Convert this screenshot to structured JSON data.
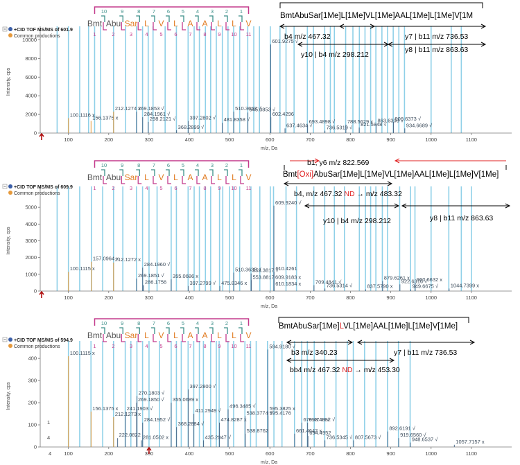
{
  "colors": {
    "blue_line": "#8fd0e8",
    "peak": "#4a6a8a",
    "orange": "#e69a3c",
    "teal": "#3a8e88",
    "magenta": "#c33a8c",
    "red": "#e02020",
    "residue_grey": "#555555",
    "residue_orange": "#e07a1f"
  },
  "common_label": "Common productions",
  "sequence_residues": [
    "Bmt",
    "Abu",
    "Sar",
    "L",
    "V",
    "L",
    "A",
    "A",
    "L",
    "L",
    "V"
  ],
  "residue_colors": [
    "grey",
    "grey",
    "orange",
    "orange",
    "orange",
    "orange",
    "orange",
    "orange",
    "orange",
    "orange",
    "orange"
  ],
  "bottom_numbers": [
    "1",
    "2",
    "3",
    "4",
    "5",
    "6",
    "7",
    "8",
    "9",
    "10",
    "11"
  ],
  "top_numbers": [
    "10",
    "9",
    "8",
    "7",
    "6",
    "5",
    "4",
    "3",
    "2",
    "1"
  ],
  "chart_data": [
    {
      "type": "bar",
      "title": "+CID TOF MS/MS of 601.9",
      "xlabel": "m/z, Da",
      "ylabel": "Intensity, cps",
      "xlim": [
        30,
        1200
      ],
      "ylim": [
        0,
        11000
      ],
      "x_ticks": [
        100,
        200,
        300,
        400,
        500,
        600,
        700,
        800,
        900,
        1000,
        1100
      ],
      "y_ticks": [
        0,
        2000,
        4000,
        6000,
        8000,
        10000
      ],
      "annotation_sequence": "BmtAbuSar[1Me]L[1Me]VL[1Me]AAL[1Me]L[1Me]V[1M",
      "fragment_labels": [
        "b4 m/z 467.32",
        "y7 | b11 m/z 736.53",
        "y10 | b4 m/z 298.212",
        "y8 | b11 m/z 863.63"
      ],
      "peaks": [
        {
          "x": 100.1116,
          "y": 1600,
          "label": "100.1116 x",
          "common": true
        },
        {
          "x": 156.1375,
          "y": 1300,
          "label": "156.1375 x",
          "common": true
        },
        {
          "x": 212.1274,
          "y": 2300,
          "label": "212.1274 x",
          "common": true
        },
        {
          "x": 269.1853,
          "y": 2300,
          "label": "269.1853 √",
          "common": false
        },
        {
          "x": 284.1961,
          "y": 1700,
          "label": "284.1961 √",
          "common": false
        },
        {
          "x": 298.2121,
          "y": 1200,
          "label": "298.2121 √",
          "common": false
        },
        {
          "x": 368.2899,
          "y": 300,
          "label": "368.2899 √",
          "common": false
        },
        {
          "x": 397.2802,
          "y": 1300,
          "label": "397.2802 √",
          "common": false
        },
        {
          "x": 481.8358,
          "y": 1100,
          "label": "481.8358 √",
          "common": false
        },
        {
          "x": 510.3643,
          "y": 2300,
          "label": "510.3643 √",
          "common": false
        },
        {
          "x": 545.3853,
          "y": 2200,
          "label": "545.3853 √",
          "common": false
        },
        {
          "x": 601.9275,
          "y": 9500,
          "label": "601.9275 √",
          "common": false
        },
        {
          "x": 602.4296,
          "y": 1700,
          "label": "602.4296",
          "common": false
        },
        {
          "x": 637.4634,
          "y": 500,
          "label": "637.4634 √",
          "common": false
        },
        {
          "x": 693.4898,
          "y": 900,
          "label": "693.4898 √",
          "common": false
        },
        {
          "x": 736.5319,
          "y": 250,
          "label": "736.5319 √",
          "common": false
        },
        {
          "x": 788.5629,
          "y": 900,
          "label": "788.5629 x",
          "common": false
        },
        {
          "x": 821.5848,
          "y": 600,
          "label": "821.5848 √",
          "common": false
        },
        {
          "x": 863.6308,
          "y": 1000,
          "label": "863.6308 √",
          "common": false
        },
        {
          "x": 906.6373,
          "y": 1200,
          "label": "906.6373 √",
          "common": false
        },
        {
          "x": 934.6689,
          "y": 500,
          "label": "934.6689 √",
          "common": false
        }
      ]
    },
    {
      "type": "bar",
      "title": "+CID TOF MS/MS of 609.9",
      "xlabel": "m/z, Da",
      "ylabel": "Intensity, cps",
      "xlim": [
        30,
        1200
      ],
      "ylim": [
        0,
        6000
      ],
      "x_ticks": [
        100,
        200,
        300,
        400,
        500,
        600,
        700,
        800,
        900,
        1000,
        1100
      ],
      "y_ticks": [
        0,
        1000,
        2000,
        3000,
        4000,
        5000
      ],
      "annotation_sequence_parts": [
        "Bmt",
        "[Oxi]",
        "AbuSar[1Me]L[1Me]VL[1Me]AAL[1Me]L[1Me]V[1Me]"
      ],
      "fragment_labels": [
        "b1, y6 m/z 822.569",
        "b4, m/z 467.32",
        "ND",
        "→ m/z 483.32",
        "y10 | b4 m/z 298.212",
        "y8 | b11 m/z 863.63"
      ],
      "peaks": [
        {
          "x": 100.1115,
          "y": 1150,
          "label": "100.1115 x",
          "common": true
        },
        {
          "x": 157.0964,
          "y": 1750,
          "label": "157.0964 x",
          "common": true
        },
        {
          "x": 212.1272,
          "y": 1700,
          "label": "212.1272 x",
          "common": true
        },
        {
          "x": 269.1851,
          "y": 750,
          "label": "269.1851 √",
          "common": false
        },
        {
          "x": 284.196,
          "y": 1400,
          "label": "284.1960 √",
          "common": false
        },
        {
          "x": 286.1756,
          "y": 350,
          "label": "286.1756",
          "common": false
        },
        {
          "x": 355.0686,
          "y": 700,
          "label": "355.0686 x",
          "common": false
        },
        {
          "x": 397.2799,
          "y": 300,
          "label": "397.2799 √",
          "common": false
        },
        {
          "x": 475.8346,
          "y": 300,
          "label": "475.8346 x",
          "common": false
        },
        {
          "x": 510.3635,
          "y": 1100,
          "label": "510.3635 √",
          "common": false
        },
        {
          "x": 553.3817,
          "y": 1050,
          "label": "553.3817 √",
          "common": false
        },
        {
          "x": 553.8817,
          "y": 650,
          "label": "553.8817",
          "common": false
        },
        {
          "x": 609.924,
          "y": 5100,
          "label": "609.9240 √",
          "common": false
        },
        {
          "x": 610.4261,
          "y": 1150,
          "label": "610.4261",
          "common": false
        },
        {
          "x": 609.9183,
          "y": 650,
          "label": "609.9183 x",
          "common": false
        },
        {
          "x": 610.1834,
          "y": 250,
          "label": "610.1834 x",
          "common": false
        },
        {
          "x": 709.4841,
          "y": 350,
          "label": "709.4841 √",
          "common": false
        },
        {
          "x": 736.5314,
          "y": 150,
          "label": "736.5314 √",
          "common": false
        },
        {
          "x": 837.579,
          "y": 100,
          "label": "837.5790 x",
          "common": false
        },
        {
          "x": 879.6261,
          "y": 600,
          "label": "879.6261 x",
          "common": false
        },
        {
          "x": 922.6316,
          "y": 400,
          "label": "922.6316 √",
          "common": false
        },
        {
          "x": 949.6675,
          "y": 100,
          "label": "949.6675 √",
          "common": false
        },
        {
          "x": 960.6632,
          "y": 500,
          "label": "960.6632 x",
          "common": false
        },
        {
          "x": 1044.7399,
          "y": 150,
          "label": "1044.7399 x",
          "common": false
        }
      ]
    },
    {
      "type": "bar",
      "title": "+CID TOF MS/MS of 594.9",
      "xlabel": "m/z, Da",
      "ylabel": "Intensity, cps",
      "xlim": [
        30,
        1200
      ],
      "ylim": [
        0,
        460
      ],
      "x_ticks": [
        100,
        200,
        300,
        400,
        500,
        600,
        700,
        800,
        900,
        1000,
        1100
      ],
      "y_ticks": [
        0,
        100,
        200,
        300,
        400
      ],
      "annotation_sequence_parts": [
        "BmtAbuSar[1Me]",
        "L",
        "VL[1Me]AAL[1Me]L[1Me]V[1Me]"
      ],
      "fragment_labels": [
        "b3 m/z 340.23",
        "y7 | b11 m/z 736.53",
        "bb4 m/z 467.32",
        "ND",
        "→ m/z 453.30"
      ],
      "stray_labels": [
        "1",
        "4",
        "4"
      ],
      "peaks": [
        {
          "x": 100.1115,
          "y": 410,
          "label": "100.1115 x",
          "common": true
        },
        {
          "x": 156.1375,
          "y": 160,
          "label": "156.1375 x",
          "common": true
        },
        {
          "x": 212.1273,
          "y": 135,
          "label": "212.1273 x",
          "common": true
        },
        {
          "x": 222.0822,
          "y": 40,
          "label": "222.0822",
          "common": false
        },
        {
          "x": 241.1903,
          "y": 160,
          "label": "241.1903 √",
          "common": false
        },
        {
          "x": 270.1803,
          "y": 230,
          "label": "270.1803 √",
          "common": false
        },
        {
          "x": 269.185,
          "y": 200,
          "label": "269.1850 √",
          "common": false
        },
        {
          "x": 281.0502,
          "y": 30,
          "label": "281.0502 x",
          "common": false
        },
        {
          "x": 284.1952,
          "y": 110,
          "label": "284.1952 √",
          "common": false
        },
        {
          "x": 368.2884,
          "y": 90,
          "label": "368.2884 √",
          "common": false
        },
        {
          "x": 355.0689,
          "y": 200,
          "label": "355.0689 x",
          "common": false
        },
        {
          "x": 397.28,
          "y": 260,
          "label": "397.2800 √",
          "common": false
        },
        {
          "x": 411.2949,
          "y": 150,
          "label": "411.2949 √",
          "common": false
        },
        {
          "x": 435.2947,
          "y": 30,
          "label": "435.2947 √",
          "common": false
        },
        {
          "x": 474.8287,
          "y": 110,
          "label": "474.8287 x",
          "common": false
        },
        {
          "x": 496.3485,
          "y": 170,
          "label": "496.3485 √",
          "common": false
        },
        {
          "x": 538.3774,
          "y": 140,
          "label": "538.3774 √",
          "common": false
        },
        {
          "x": 538.8762,
          "y": 60,
          "label": "538.8762",
          "common": false
        },
        {
          "x": 594.918,
          "y": 440,
          "label": "594.9180 √",
          "common": false
        },
        {
          "x": 595.3825,
          "y": 160,
          "label": "595.3825 x",
          "common": false
        },
        {
          "x": 595.4176,
          "y": 140,
          "label": "595.4176",
          "common": false
        },
        {
          "x": 661.4642,
          "y": 60,
          "label": "661.4642 x",
          "common": false
        },
        {
          "x": 679.474,
          "y": 110,
          "label": "679.4740 √",
          "common": false
        },
        {
          "x": 693.4882,
          "y": 110,
          "label": "693.4882 √",
          "common": false
        },
        {
          "x": 694.4952,
          "y": 50,
          "label": "694.4952",
          "common": false
        },
        {
          "x": 736.5345,
          "y": 30,
          "label": "736.5345 √",
          "common": false
        },
        {
          "x": 807.5673,
          "y": 30,
          "label": "807.5673 √",
          "common": false
        },
        {
          "x": 892.6191,
          "y": 70,
          "label": "892.6191 √",
          "common": false
        },
        {
          "x": 919.656,
          "y": 40,
          "label": "919.6560 √",
          "common": false
        },
        {
          "x": 948.6537,
          "y": 20,
          "label": "948.6537 √",
          "common": false
        },
        {
          "x": 1057.7157,
          "y": 10,
          "label": "1057.7157 x",
          "common": false
        }
      ]
    }
  ]
}
